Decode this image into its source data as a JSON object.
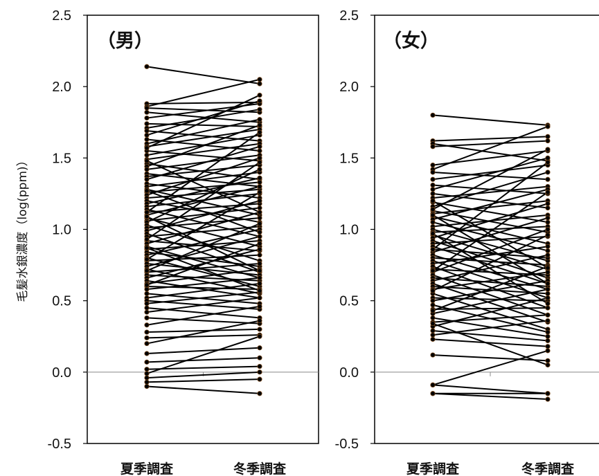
{
  "chart_data": [
    {
      "type": "line",
      "title": "（男）",
      "ylabel": "毛髪水銀濃度（log(ppm)）",
      "categories": [
        "夏季調査",
        "冬季調査"
      ],
      "ylim": [
        -0.5,
        2.5
      ],
      "yticks": [
        "-0.5",
        "0.0",
        "0.5",
        "1.0",
        "1.5",
        "2.0",
        "2.5"
      ],
      "grid": false,
      "pairs": [
        [
          2.14,
          2.02
        ],
        [
          1.88,
          1.89
        ],
        [
          1.86,
          2.05
        ],
        [
          1.85,
          1.82
        ],
        [
          1.82,
          1.75
        ],
        [
          1.78,
          1.88
        ],
        [
          1.74,
          1.72
        ],
        [
          1.71,
          1.84
        ],
        [
          1.69,
          1.62
        ],
        [
          1.66,
          1.9
        ],
        [
          1.63,
          1.55
        ],
        [
          1.6,
          1.77
        ],
        [
          1.58,
          1.7
        ],
        [
          1.55,
          1.48
        ],
        [
          1.52,
          1.66
        ],
        [
          1.49,
          1.6
        ],
        [
          1.46,
          1.35
        ],
        [
          1.44,
          1.73
        ],
        [
          1.42,
          1.52
        ],
        [
          1.39,
          1.3
        ],
        [
          1.37,
          1.45
        ],
        [
          1.35,
          1.58
        ],
        [
          1.32,
          1.22
        ],
        [
          1.3,
          1.4
        ],
        [
          1.28,
          1.1
        ],
        [
          1.26,
          1.33
        ],
        [
          1.24,
          1.5
        ],
        [
          1.22,
          1.28
        ],
        [
          1.2,
          1.05
        ],
        [
          1.18,
          1.36
        ],
        [
          1.16,
          1.25
        ],
        [
          1.14,
          0.95
        ],
        [
          1.12,
          1.18
        ],
        [
          1.1,
          1.3
        ],
        [
          1.08,
          0.88
        ],
        [
          1.06,
          1.15
        ],
        [
          1.05,
          1.42
        ],
        [
          1.03,
          0.78
        ],
        [
          1.01,
          1.08
        ],
        [
          0.99,
          1.2
        ],
        [
          0.97,
          0.7
        ],
        [
          0.95,
          1.02
        ],
        [
          0.92,
          0.85
        ],
        [
          0.9,
          1.12
        ],
        [
          0.88,
          0.66
        ],
        [
          0.86,
          0.92
        ],
        [
          0.84,
          0.74
        ],
        [
          0.82,
          1.0
        ],
        [
          0.8,
          0.6
        ],
        [
          0.78,
          0.82
        ],
        [
          0.76,
          0.68
        ],
        [
          0.74,
          0.95
        ],
        [
          0.72,
          0.55
        ],
        [
          0.7,
          0.76
        ],
        [
          0.68,
          0.64
        ],
        [
          0.66,
          0.86
        ],
        [
          0.64,
          0.52
        ],
        [
          0.62,
          0.72
        ],
        [
          0.6,
          0.58
        ],
        [
          0.58,
          0.66
        ],
        [
          0.55,
          0.48
        ],
        [
          0.52,
          0.62
        ],
        [
          0.5,
          0.44
        ],
        [
          0.48,
          0.56
        ],
        [
          0.45,
          0.38
        ],
        [
          0.42,
          0.52
        ],
        [
          0.38,
          0.34
        ],
        [
          0.33,
          0.46
        ],
        [
          0.28,
          0.3
        ],
        [
          0.24,
          0.26
        ],
        [
          0.2,
          0.36
        ],
        [
          0.13,
          0.17
        ],
        [
          0.07,
          0.1
        ],
        [
          0.02,
          0.04
        ],
        [
          -0.01,
          0.25
        ],
        [
          -0.04,
          0.0
        ],
        [
          -0.07,
          -0.05
        ],
        [
          -0.1,
          -0.15
        ],
        [
          1.12,
          1.68
        ],
        [
          0.93,
          1.47
        ],
        [
          0.79,
          1.26
        ],
        [
          0.71,
          1.04
        ],
        [
          0.61,
          0.9
        ],
        [
          1.48,
          1.12
        ],
        [
          1.27,
          0.98
        ],
        [
          1.09,
          0.71
        ],
        [
          0.87,
          0.57
        ],
        [
          1.57,
          1.94
        ]
      ]
    },
    {
      "type": "line",
      "title": "（女）",
      "ylabel": "",
      "categories": [
        "夏季調査",
        "冬季調査"
      ],
      "ylim": [
        -0.5,
        2.5
      ],
      "yticks": [
        "-0.5",
        "0.0",
        "0.5",
        "1.0",
        "1.5",
        "2.0",
        "2.5"
      ],
      "grid": false,
      "pairs": [
        [
          1.8,
          1.73
        ],
        [
          1.62,
          1.65
        ],
        [
          1.6,
          1.48
        ],
        [
          1.45,
          1.55
        ],
        [
          1.42,
          1.72
        ],
        [
          1.4,
          1.35
        ],
        [
          1.35,
          1.45
        ],
        [
          1.31,
          1.25
        ],
        [
          1.28,
          1.5
        ],
        [
          1.25,
          1.15
        ],
        [
          1.22,
          1.3
        ],
        [
          1.19,
          1.05
        ],
        [
          1.16,
          1.4
        ],
        [
          1.13,
          0.98
        ],
        [
          1.11,
          1.2
        ],
        [
          1.09,
          0.9
        ],
        [
          1.07,
          1.28
        ],
        [
          1.05,
          0.85
        ],
        [
          1.02,
          1.1
        ],
        [
          1.0,
          0.78
        ],
        [
          0.98,
          1.02
        ],
        [
          0.96,
          0.72
        ],
        [
          0.94,
          1.18
        ],
        [
          0.92,
          0.66
        ],
        [
          0.9,
          0.95
        ],
        [
          0.88,
          0.62
        ],
        [
          0.86,
          0.8
        ],
        [
          0.84,
          1.08
        ],
        [
          0.82,
          0.58
        ],
        [
          0.8,
          0.75
        ],
        [
          0.78,
          0.52
        ],
        [
          0.76,
          0.88
        ],
        [
          0.74,
          0.45
        ],
        [
          0.72,
          0.68
        ],
        [
          0.7,
          1.0
        ],
        [
          0.68,
          0.4
        ],
        [
          0.66,
          0.6
        ],
        [
          0.64,
          0.82
        ],
        [
          0.62,
          0.35
        ],
        [
          0.6,
          0.55
        ],
        [
          0.58,
          0.7
        ],
        [
          0.55,
          0.3
        ],
        [
          0.52,
          0.5
        ],
        [
          0.5,
          0.64
        ],
        [
          0.47,
          0.28
        ],
        [
          0.44,
          0.45
        ],
        [
          0.41,
          0.58
        ],
        [
          0.38,
          0.25
        ],
        [
          0.35,
          0.4
        ],
        [
          0.32,
          0.52
        ],
        [
          0.29,
          0.22
        ],
        [
          0.26,
          0.36
        ],
        [
          0.23,
          0.18
        ],
        [
          0.12,
          0.08
        ],
        [
          -0.09,
          0.15
        ],
        [
          -0.09,
          -0.15
        ],
        [
          -0.15,
          -0.19
        ],
        [
          -0.15,
          -0.15
        ],
        [
          0.86,
          1.47
        ],
        [
          0.71,
          1.26
        ],
        [
          0.57,
          0.96
        ],
        [
          0.43,
          0.74
        ],
        [
          1.1,
          0.62
        ],
        [
          1.2,
          0.73
        ],
        [
          0.97,
          0.48
        ],
        [
          0.34,
          0.05
        ],
        [
          1.58,
          1.62
        ],
        [
          1.14,
          1.56
        ]
      ]
    }
  ]
}
